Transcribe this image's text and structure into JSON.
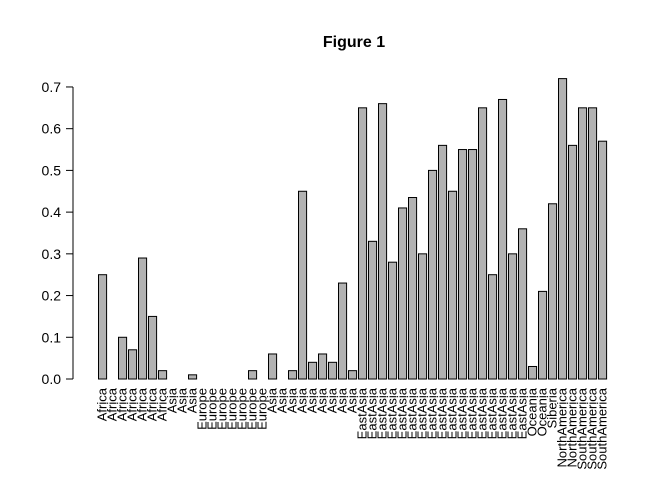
{
  "chart_data": {
    "type": "bar",
    "title": "Figure 1",
    "xlabel": "",
    "ylabel": "",
    "ylim": [
      0,
      0.72
    ],
    "yticks": [
      0.0,
      0.1,
      0.2,
      0.3,
      0.4,
      0.5,
      0.6,
      0.7
    ],
    "ytick_labels": [
      "0.0",
      "0.1",
      "0.2",
      "0.3",
      "0.4",
      "0.5",
      "0.6",
      "0.7"
    ],
    "grid": false,
    "bar_color": "#b2b2b2",
    "categories": [
      "Africa",
      "Africa",
      "Africa",
      "Africa",
      "Africa",
      "Africa",
      "Africa",
      "Asia",
      "Asia",
      "Asia",
      "Europe",
      "Europe",
      "Europe",
      "Europe",
      "Europe",
      "Europe",
      "Europe",
      "Asia",
      "Asia",
      "Asia",
      "Asia",
      "Asia",
      "Asia",
      "Asia",
      "Asia",
      "Asia",
      "EastAsia",
      "EastAsia",
      "EastAsia",
      "EastAsia",
      "EastAsia",
      "EastAsia",
      "EastAsia",
      "EastAsia",
      "EastAsia",
      "EastAsia",
      "EastAsia",
      "EastAsia",
      "EastAsia",
      "EastAsia",
      "EastAsia",
      "EastAsia",
      "EastAsia",
      "Oceania",
      "Oceania",
      "Siberia",
      "NorthAmerica",
      "NorthAmerica",
      "SouthAmerica",
      "SouthAmerica",
      "SouthAmerica"
    ],
    "values": [
      0.25,
      0.0,
      0.1,
      0.07,
      0.29,
      0.15,
      0.02,
      0.0,
      0.0,
      0.01,
      0.0,
      0.0,
      0.0,
      0.0,
      0.0,
      0.02,
      0.0,
      0.06,
      0.0,
      0.02,
      0.45,
      0.04,
      0.06,
      0.04,
      0.23,
      0.02,
      0.65,
      0.33,
      0.66,
      0.28,
      0.41,
      0.435,
      0.3,
      0.5,
      0.56,
      0.45,
      0.55,
      0.55,
      0.65,
      0.25,
      0.67,
      0.3,
      0.36,
      0.03,
      0.21,
      0.42,
      0.72,
      0.56,
      0.65,
      0.65,
      0.57
    ]
  }
}
